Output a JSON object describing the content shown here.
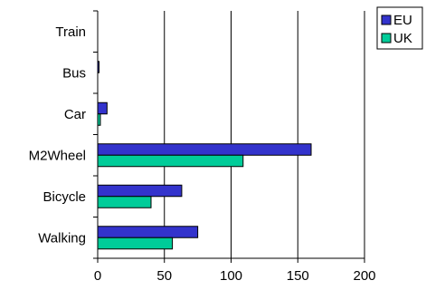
{
  "chart_data": {
    "type": "bar",
    "orientation": "horizontal",
    "categories": [
      "Walking",
      "Bicycle",
      "M2Wheel",
      "Car",
      "Bus",
      "Train"
    ],
    "series": [
      {
        "name": "EU",
        "values": [
          75,
          63,
          160,
          7,
          1,
          0
        ],
        "color": "#3333cc"
      },
      {
        "name": "UK",
        "values": [
          56,
          40,
          109,
          2,
          0,
          0
        ],
        "color": "#00cc99"
      }
    ],
    "xlim": [
      0,
      200
    ],
    "xticks": [
      0,
      50,
      100,
      150,
      200
    ],
    "grid": "vertical",
    "legend_position": "top-right"
  }
}
